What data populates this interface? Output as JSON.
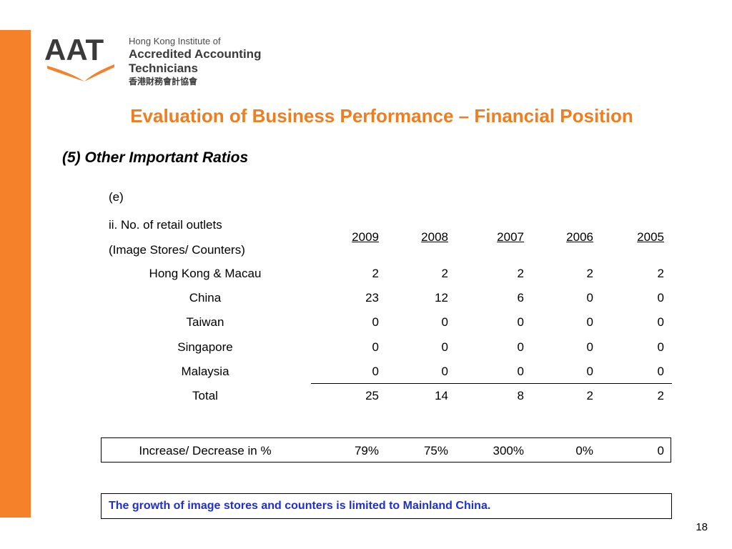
{
  "logo": {
    "mark_text": "AAT",
    "line1": "Hong Kong Institute of",
    "line2": "Accredited Accounting Technicians",
    "line3": "香港財務會計協會",
    "brand_color": "#f5822a"
  },
  "title": "Evaluation of Business Performance – Financial Position",
  "subtitle": "(5) Other Important Ratios",
  "label_e": "(e)",
  "table": {
    "header_line1": "ii. No. of retail outlets",
    "header_line2": "(Image Stores/ Counters)",
    "years": [
      "2009",
      "2008",
      "2007",
      "2006",
      "2005"
    ],
    "rows": [
      {
        "label": "Hong Kong & Macau",
        "values": [
          "2",
          "2",
          "2",
          "2",
          "2"
        ]
      },
      {
        "label": "China",
        "values": [
          "23",
          "12",
          "6",
          "0",
          "0"
        ]
      },
      {
        "label": "Taiwan",
        "values": [
          "0",
          "0",
          "0",
          "0",
          "0"
        ]
      },
      {
        "label": "Singapore",
        "values": [
          "0",
          "0",
          "0",
          "0",
          "0"
        ]
      },
      {
        "label": "Malaysia",
        "values": [
          "0",
          "0",
          "0",
          "0",
          "0"
        ]
      },
      {
        "label": "Total",
        "values": [
          "25",
          "14",
          "8",
          "2",
          "2"
        ]
      }
    ],
    "increase": {
      "label": "Increase/ Decrease in %",
      "values": [
        "79%",
        "75%",
        "300%",
        "0%",
        "0"
      ]
    }
  },
  "note": "The growth of image stores and counters is limited to Mainland China.",
  "page_number": "18"
}
